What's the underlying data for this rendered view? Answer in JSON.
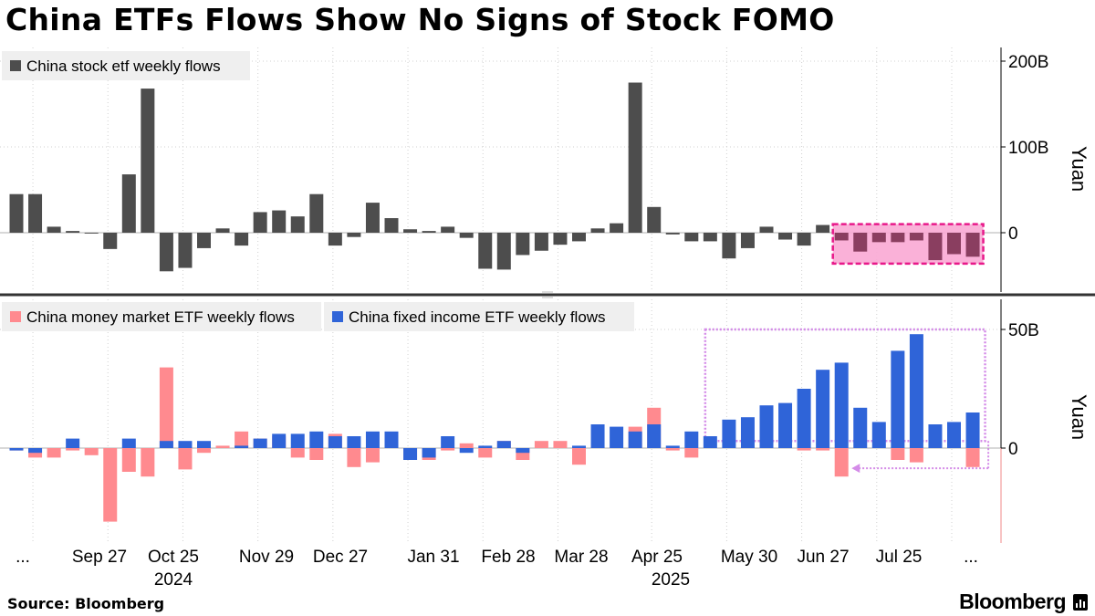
{
  "title": "China ETFs Flows Show No Signs of Stock FOMO",
  "source": "Source: Bloomberg",
  "brand": "Bloomberg",
  "colors": {
    "stock": "#4d4d4d",
    "stock_highlight": "#8a3e60",
    "money_market": "#ff8a8f",
    "fixed_income": "#2f64d8",
    "highlight_fill": "#f9a8d4",
    "highlight_stroke": "#e8198a",
    "box_purple": "#d48ce8",
    "grid": "#d0d0d0",
    "zero_axis_pink": "#f08a8a"
  },
  "chart_data": [
    {
      "type": "bar",
      "title": "",
      "ylabel": "Yuan",
      "ylim": [
        -70,
        220
      ],
      "yticks": [
        0,
        100,
        200
      ],
      "ytick_labels": [
        "0",
        "100B",
        "200B"
      ],
      "legend": [
        "China stock etf weekly flows"
      ],
      "legend_position": "top-left",
      "grid": true,
      "series": [
        {
          "name": "China stock etf weekly flows",
          "values": [
            45,
            45,
            7,
            2,
            -1,
            -19,
            68,
            168,
            -45,
            -41,
            -18,
            5,
            -15,
            24,
            26,
            19,
            45,
            -15,
            -5,
            35,
            17,
            4,
            2,
            7,
            -6,
            -42,
            -43,
            -26,
            -21,
            -14,
            -10,
            5,
            11,
            175,
            30,
            -2,
            -10,
            -10,
            -30,
            -18,
            7,
            -8,
            -15,
            9,
            -9,
            -22,
            -11,
            -11,
            -9,
            -32,
            -25,
            -28
          ]
        }
      ],
      "highlight_from_index": 44
    },
    {
      "type": "bar",
      "title": "",
      "ylabel": "Yuan",
      "ylim": [
        -39,
        58
      ],
      "yticks": [
        0,
        50
      ],
      "ytick_labels": [
        "0",
        "50B"
      ],
      "legend": [
        "China money market ETF weekly flows",
        "China fixed income ETF weekly flows"
      ],
      "legend_position": "top-left",
      "grid": true,
      "series": [
        {
          "name": "China money market ETF weekly flows",
          "values": [
            -1,
            -4,
            -4,
            -1,
            -3,
            -31,
            -10,
            -12,
            34,
            -9,
            -2,
            1,
            7,
            4,
            5,
            -4,
            -5,
            6,
            -8,
            -6,
            0,
            -5,
            -5,
            -1,
            2,
            -4,
            3,
            -5,
            3,
            3,
            -7,
            0,
            0,
            9,
            17,
            -1,
            -4,
            0,
            0,
            0,
            0,
            0,
            -1,
            -1,
            -12,
            0,
            0,
            -5,
            -6,
            0,
            0,
            -8
          ]
        },
        {
          "name": "China fixed income ETF weekly flows",
          "values": [
            -1,
            -2,
            0,
            4,
            0,
            0,
            4,
            0,
            3,
            3,
            3,
            0,
            1,
            4,
            6,
            6,
            7,
            5,
            5,
            7,
            7,
            -5,
            -4,
            5,
            -2,
            1,
            3,
            -2,
            0,
            0,
            1,
            10,
            9,
            7,
            10,
            1,
            7,
            5,
            12,
            13,
            18,
            19,
            25,
            33,
            36,
            17,
            11,
            41,
            48,
            10,
            11,
            15
          ]
        }
      ],
      "x_tick_labels": [
        "...",
        "Sep 27",
        "Oct 25",
        "Nov 29",
        "Dec 27",
        "Jan 31",
        "Feb 28",
        "Mar 28",
        "Apr 25",
        "May 30",
        "Jun 27",
        "Jul 25",
        "..."
      ],
      "x_year_labels": [
        "2024",
        "2025"
      ]
    }
  ]
}
